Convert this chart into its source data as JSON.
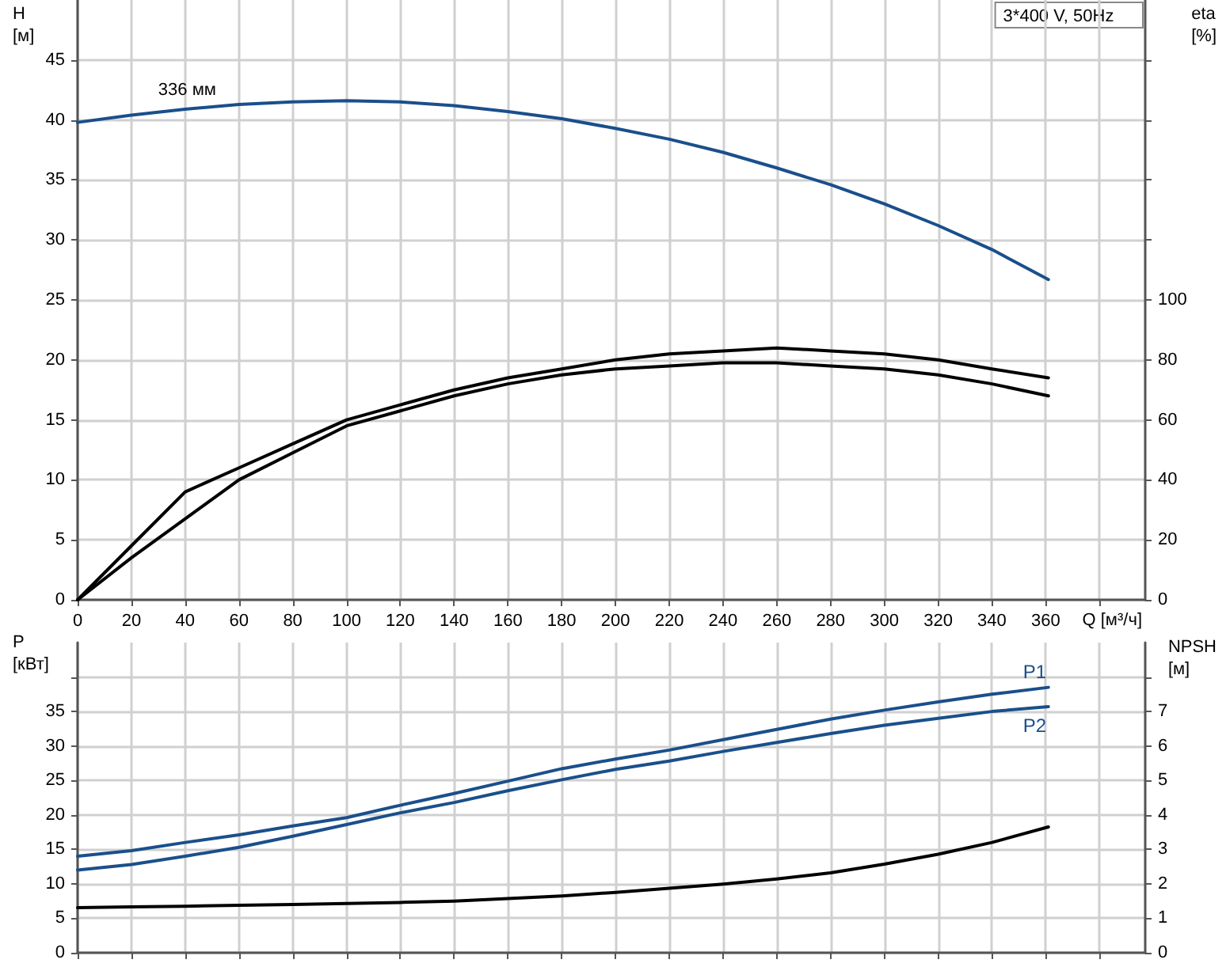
{
  "chart_data": [
    {
      "type": "line",
      "xlabel": "Q [м³/ч]",
      "ylabel": "H [м]",
      "y2label": "eta [%]",
      "annotations": [
        "3*400 V, 50Hz",
        {
          "text": "336 мм",
          "x": 30,
          "y": 41
        }
      ],
      "x": [
        0,
        20,
        40,
        60,
        80,
        100,
        120,
        140,
        160,
        180,
        200,
        220,
        240,
        260,
        280,
        300,
        320,
        340,
        361
      ],
      "xlim": [
        0,
        397
      ],
      "xticks": [
        0,
        20,
        40,
        60,
        80,
        100,
        120,
        140,
        160,
        180,
        200,
        220,
        240,
        260,
        280,
        300,
        320,
        340,
        360,
        {
          "value": 380,
          "label": null
        }
      ],
      "ylim": [
        0,
        50
      ],
      "yticks": [
        0,
        5,
        10,
        15,
        20,
        25,
        30,
        35,
        40,
        45
      ],
      "y2lim": [
        0,
        200
      ],
      "y2ticks": [
        0,
        20,
        40,
        60,
        80,
        100,
        {
          "value": 120,
          "label": null
        },
        {
          "value": 140,
          "label": null
        },
        {
          "value": 160,
          "label": null
        },
        {
          "value": 180,
          "label": null
        }
      ],
      "grid": true,
      "marker": "none",
      "line_style": "solid",
      "series": [
        {
          "color": "#1a4f8b",
          "values": [
            39.8,
            40.4,
            40.9,
            41.3,
            41.5,
            41.6,
            41.5,
            41.2,
            40.7,
            40.1,
            39.3,
            38.4,
            37.3,
            36.0,
            34.6,
            33.0,
            31.2,
            29.2,
            26.7
          ]
        },
        {
          "color": "#000000",
          "axis": "y2",
          "values": [
            0,
            18,
            36,
            44,
            52,
            60,
            65,
            70,
            74,
            77,
            80,
            82,
            83,
            84,
            83,
            82,
            80,
            77,
            74
          ]
        },
        {
          "color": "#000000",
          "axis": "y2",
          "values": [
            0,
            14,
            27,
            40,
            49,
            58,
            63,
            68,
            72,
            75,
            77,
            78,
            79,
            79,
            78,
            77,
            75,
            72,
            68
          ]
        }
      ]
    },
    {
      "type": "line",
      "ylabel": "P [кВт]",
      "y2label": "NPSH [м]",
      "tick_labels": "y",
      "x": [
        0,
        20,
        40,
        60,
        80,
        100,
        120,
        140,
        160,
        180,
        200,
        220,
        240,
        260,
        280,
        300,
        320,
        340,
        361
      ],
      "xlim": [
        0,
        397
      ],
      "xticks": [
        0,
        20,
        40,
        60,
        80,
        100,
        120,
        140,
        160,
        180,
        200,
        220,
        240,
        260,
        280,
        300,
        320,
        340,
        360,
        380
      ],
      "ylim": [
        0,
        45
      ],
      "yticks": [
        0,
        5,
        10,
        15,
        20,
        25,
        30,
        35,
        {
          "value": 40,
          "label": null
        }
      ],
      "y2lim": [
        0,
        9
      ],
      "y2ticks": [
        0,
        1,
        2,
        3,
        4,
        5,
        6,
        7,
        {
          "value": 8,
          "label": null
        }
      ],
      "grid": true,
      "marker": "none",
      "line_style": "solid",
      "series": [
        {
          "name": "P1",
          "color": "#1a4f8b",
          "values": [
            14.0,
            14.8,
            16.0,
            17.1,
            18.4,
            19.6,
            21.4,
            23.1,
            24.9,
            26.7,
            28.1,
            29.4,
            30.9,
            32.4,
            33.9,
            35.2,
            36.4,
            37.5,
            38.5
          ]
        },
        {
          "name": "P2",
          "color": "#1a4f8b",
          "values": [
            12.0,
            12.8,
            14.0,
            15.3,
            16.9,
            18.6,
            20.3,
            21.8,
            23.5,
            25.1,
            26.6,
            27.8,
            29.2,
            30.5,
            31.8,
            33.0,
            34.0,
            35.0,
            35.7
          ]
        },
        {
          "color": "#000000",
          "axis": "y2",
          "values": [
            1.31,
            1.33,
            1.35,
            1.38,
            1.4,
            1.43,
            1.46,
            1.5,
            1.57,
            1.65,
            1.75,
            1.87,
            1.99,
            2.14,
            2.32,
            2.57,
            2.86,
            3.2,
            3.65
          ]
        }
      ]
    }
  ]
}
